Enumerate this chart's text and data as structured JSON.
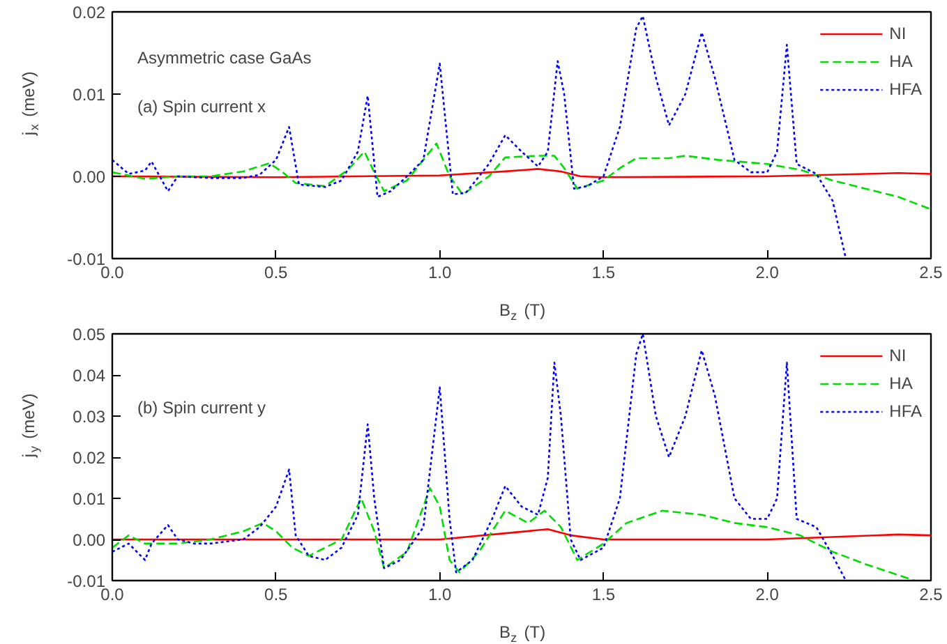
{
  "chart_data": [
    {
      "type": "line",
      "xlabel": "B$_{z}$ (T)",
      "ylabel": "j$_{x}$ (meV)",
      "annotations": [
        "Asymmetric case GaAs",
        "(a) Spin current x"
      ],
      "xlim": [
        0,
        2.5
      ],
      "xticks": [
        {
          "value": 0,
          "label": "0.0"
        },
        0.5,
        {
          "value": 1,
          "label": "1.0"
        },
        1.5,
        {
          "value": 2,
          "label": "2.0"
        },
        2.5
      ],
      "ylim": [
        -0.01,
        0.02
      ],
      "yticks": [
        -0.01,
        {
          "value": 0,
          "label": "0.00"
        },
        0.01,
        0.02
      ],
      "grid": false,
      "legend": "top right",
      "series": [
        {
          "name": "NI",
          "color": "#ff0000",
          "line_style": "solid",
          "x": [
            0,
            0.5,
            1.0,
            1.2,
            1.3,
            1.37,
            1.43,
            1.5,
            2.0,
            2.4,
            2.5
          ],
          "values": [
            0,
            -0.0001,
            0.0001,
            0.0006,
            0.0009,
            0.0006,
            0.0,
            -0.0001,
            0.0,
            0.0004,
            0.0003
          ]
        },
        {
          "name": "HA",
          "color": "#00dd00",
          "line_style": "dashed",
          "x": [
            0,
            0.1,
            0.2,
            0.3,
            0.4,
            0.48,
            0.52,
            0.56,
            0.65,
            0.72,
            0.77,
            0.8,
            0.83,
            0.9,
            0.95,
            0.99,
            1.03,
            1.07,
            1.15,
            1.2,
            1.3,
            1.35,
            1.38,
            1.42,
            1.5,
            1.55,
            1.6,
            1.7,
            1.75,
            1.85,
            2.0,
            2.1,
            2.2,
            2.3,
            2.4,
            2.5
          ],
          "values": [
            0.0005,
            -0.0003,
            0.0,
            0.0,
            0.0006,
            0.0016,
            0.0005,
            -0.0008,
            -0.0012,
            0.0008,
            0.003,
            0.0005,
            -0.0018,
            -0.0005,
            0.002,
            0.004,
            0.0,
            -0.0022,
            0.0,
            0.0023,
            0.0025,
            0.0025,
            0.001,
            -0.0015,
            -0.0005,
            0.001,
            0.0022,
            0.0022,
            0.0025,
            0.002,
            0.0015,
            0.0008,
            -0.0005,
            -0.0015,
            -0.0025,
            -0.004
          ]
        },
        {
          "name": "HFA",
          "color": "#0000ff",
          "line_style": "dotted",
          "x": [
            0,
            0.05,
            0.1,
            0.12,
            0.17,
            0.2,
            0.3,
            0.4,
            0.45,
            0.5,
            0.54,
            0.57,
            0.65,
            0.7,
            0.75,
            0.78,
            0.81,
            0.85,
            0.9,
            0.95,
            1.0,
            1.04,
            1.08,
            1.15,
            1.2,
            1.25,
            1.3,
            1.33,
            1.36,
            1.38,
            1.41,
            1.45,
            1.5,
            1.55,
            1.6,
            1.62,
            1.66,
            1.7,
            1.75,
            1.8,
            1.84,
            1.9,
            1.95,
            2.0,
            2.03,
            2.06,
            2.09,
            2.15,
            2.2,
            2.24
          ],
          "values": [
            0.002,
            0.0003,
            0.0007,
            0.0018,
            -0.0018,
            0.0,
            -0.0002,
            -0.0002,
            0.0002,
            0.002,
            0.006,
            -0.001,
            -0.0013,
            -0.0005,
            0.003,
            0.0098,
            -0.0025,
            -0.0018,
            0.0,
            0.002,
            0.0137,
            -0.0022,
            -0.002,
            0.0015,
            0.005,
            0.003,
            0.0012,
            0.003,
            0.014,
            0.01,
            -0.0015,
            -0.0012,
            0.0,
            0.006,
            0.018,
            0.0195,
            0.012,
            0.0062,
            0.01,
            0.0175,
            0.012,
            0.002,
            0.0005,
            0.0005,
            0.003,
            0.016,
            0.0015,
            0.0003,
            -0.003,
            -0.01
          ]
        }
      ]
    },
    {
      "type": "line",
      "xlabel": "B$_{z}$ (T)",
      "ylabel": "j$_{y}$ (meV)",
      "annotations": [
        "(b) Spin current y"
      ],
      "xlim": [
        0,
        2.5
      ],
      "xticks": [
        {
          "value": 0,
          "label": "0.0"
        },
        0.5,
        {
          "value": 1,
          "label": "1.0"
        },
        1.5,
        {
          "value": 2,
          "label": "2.0"
        },
        2.5
      ],
      "ylim": [
        -0.01,
        0.05
      ],
      "yticks": [
        -0.01,
        {
          "value": 0,
          "label": "0.00"
        },
        0.01,
        0.02,
        0.03,
        0.04,
        0.05
      ],
      "grid": false,
      "legend": "top right",
      "series": [
        {
          "name": "NI",
          "color": "#ff0000",
          "line_style": "solid",
          "x": [
            0,
            0.5,
            1.0,
            1.2,
            1.33,
            1.4,
            1.5,
            2.0,
            2.4,
            2.5
          ],
          "values": [
            0,
            0.0,
            0.0,
            0.0015,
            0.0025,
            0.001,
            0.0,
            0.0,
            0.0012,
            0.001
          ]
        },
        {
          "name": "HA",
          "color": "#00dd00",
          "line_style": "dashed",
          "x": [
            0,
            0.05,
            0.1,
            0.2,
            0.3,
            0.35,
            0.4,
            0.46,
            0.5,
            0.55,
            0.6,
            0.7,
            0.76,
            0.8,
            0.83,
            0.9,
            0.97,
            1.0,
            1.03,
            1.06,
            1.12,
            1.2,
            1.27,
            1.32,
            1.37,
            1.42,
            1.5,
            1.57,
            1.68,
            1.8,
            1.9,
            2.0,
            2.1,
            2.2,
            2.3,
            2.45
          ],
          "values": [
            -0.002,
            0.001,
            -0.001,
            -0.001,
            0.0,
            0.001,
            0.002,
            0.004,
            0.002,
            -0.002,
            -0.004,
            0.0,
            0.01,
            0.002,
            -0.007,
            -0.003,
            0.0125,
            0.008,
            -0.005,
            -0.008,
            -0.003,
            0.007,
            0.004,
            0.007,
            0.003,
            -0.005,
            -0.001,
            0.004,
            0.007,
            0.006,
            0.004,
            0.003,
            0.001,
            -0.003,
            -0.006,
            -0.01
          ]
        },
        {
          "name": "HFA",
          "color": "#0000ff",
          "line_style": "dotted",
          "x": [
            0,
            0.05,
            0.1,
            0.12,
            0.17,
            0.2,
            0.25,
            0.3,
            0.4,
            0.45,
            0.5,
            0.54,
            0.56,
            0.6,
            0.65,
            0.7,
            0.75,
            0.78,
            0.8,
            0.83,
            0.88,
            0.95,
            1.0,
            1.03,
            1.05,
            1.1,
            1.16,
            1.2,
            1.25,
            1.3,
            1.33,
            1.35,
            1.37,
            1.4,
            1.43,
            1.5,
            1.55,
            1.6,
            1.62,
            1.66,
            1.7,
            1.75,
            1.8,
            1.84,
            1.9,
            1.95,
            2.0,
            2.03,
            2.06,
            2.09,
            2.15,
            2.2,
            2.24
          ],
          "values": [
            -0.003,
            -0.001,
            -0.005,
            -0.001,
            0.0035,
            0.0,
            -0.001,
            -0.001,
            0.0,
            0.003,
            0.008,
            0.017,
            0.001,
            -0.004,
            -0.005,
            -0.002,
            0.006,
            0.028,
            0.01,
            -0.007,
            -0.005,
            0.003,
            0.037,
            0.005,
            -0.008,
            -0.005,
            0.005,
            0.013,
            0.008,
            0.006,
            0.015,
            0.043,
            0.03,
            0.0,
            -0.005,
            -0.002,
            0.01,
            0.045,
            0.05,
            0.03,
            0.02,
            0.03,
            0.046,
            0.035,
            0.01,
            0.005,
            0.005,
            0.01,
            0.043,
            0.005,
            0.003,
            -0.004,
            -0.01
          ]
        }
      ]
    }
  ]
}
